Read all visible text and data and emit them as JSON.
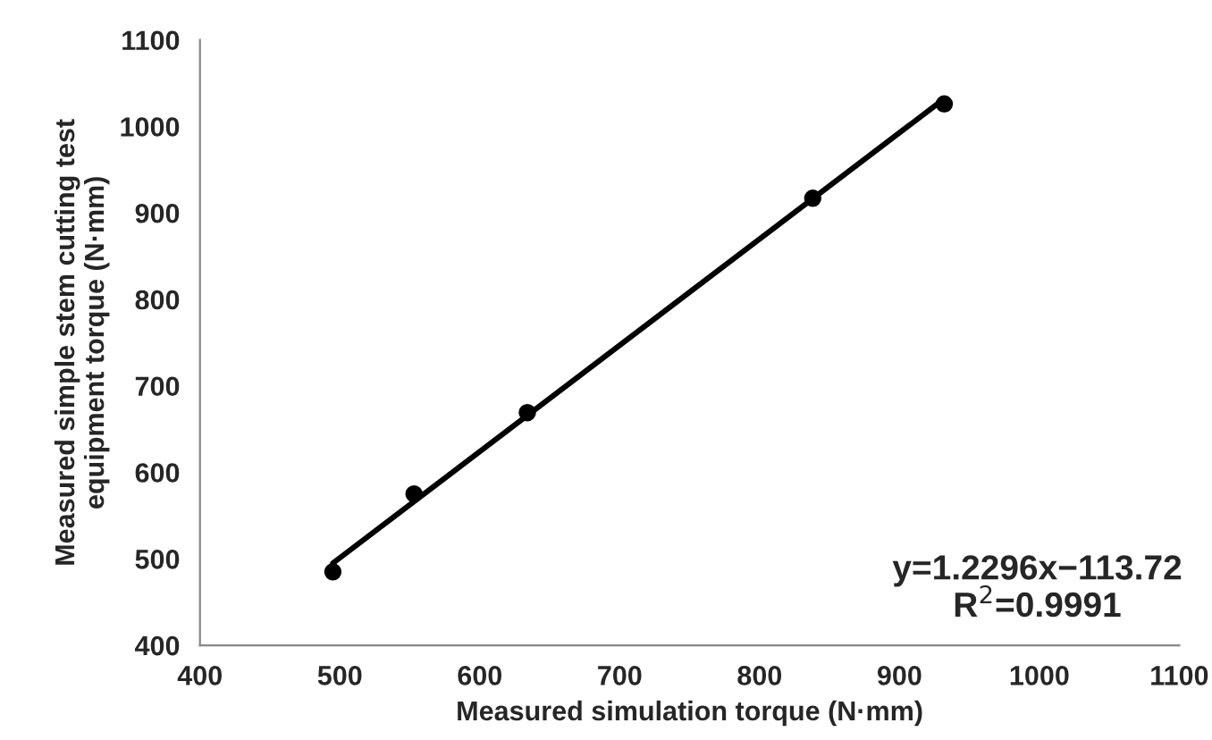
{
  "chart_data": {
    "type": "scatter",
    "xlabel": "Measured simulation torque (N·mm)",
    "ylabel": "Measured simple stem cutting test\nequipment torque (N·mm)",
    "x": [
      495,
      553,
      634,
      838,
      932
    ],
    "series": [
      {
        "color": "#000000",
        "values": [
          485,
          575,
          669,
          917,
          1026
        ]
      },
      {
        "type": "line",
        "marker": "none",
        "color": "#000000",
        "x": [
          495,
          932
        ],
        "values": [
          495,
          1032
        ]
      }
    ],
    "xlim": [
      400,
      1100
    ],
    "ylim": [
      400,
      1100
    ],
    "xticks": [
      400,
      500,
      600,
      700,
      800,
      900,
      1000,
      1100
    ],
    "yticks": [
      400,
      500,
      600,
      700,
      800,
      900,
      1000,
      1100
    ],
    "annotations": [
      "y=1.2296x−113.72\nR$^{2}$=0.9991"
    ],
    "marker": "circle",
    "grid": false,
    "legend": false
  }
}
